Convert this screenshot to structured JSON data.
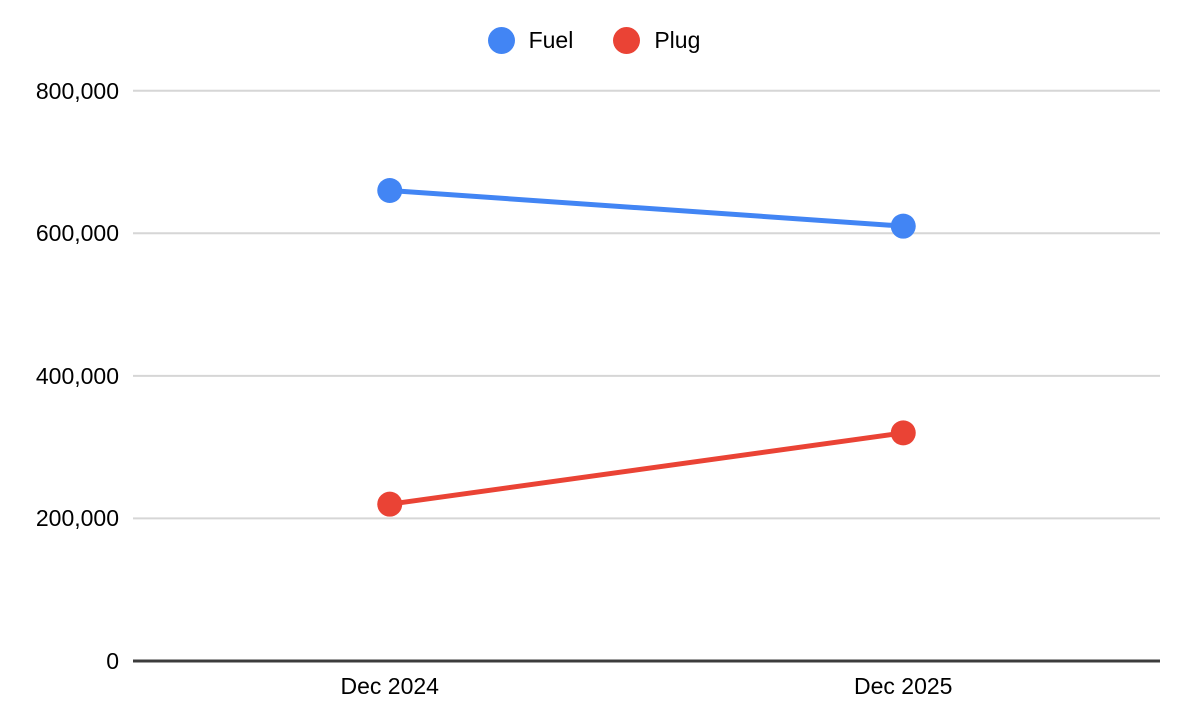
{
  "chart_data": {
    "type": "line",
    "title": "",
    "categories": [
      "Dec 2024",
      "Dec 2025"
    ],
    "series": [
      {
        "name": "Fuel",
        "color": "#4285F4",
        "values": [
          660000,
          610000
        ]
      },
      {
        "name": "Plug",
        "color": "#EA4335",
        "values": [
          220000,
          320000
        ]
      }
    ],
    "ylim": [
      0,
      800000
    ],
    "yticks": [
      0,
      200000,
      400000,
      600000,
      800000
    ],
    "ytick_labels": [
      "0",
      "200,000",
      "400,000",
      "600,000",
      "800,000"
    ],
    "legend_position": "top",
    "grid": true,
    "colors": {
      "gridline": "#d6d6d6",
      "axis_line": "#3c3c3c",
      "text": "#000000",
      "background": "#ffffff"
    }
  }
}
